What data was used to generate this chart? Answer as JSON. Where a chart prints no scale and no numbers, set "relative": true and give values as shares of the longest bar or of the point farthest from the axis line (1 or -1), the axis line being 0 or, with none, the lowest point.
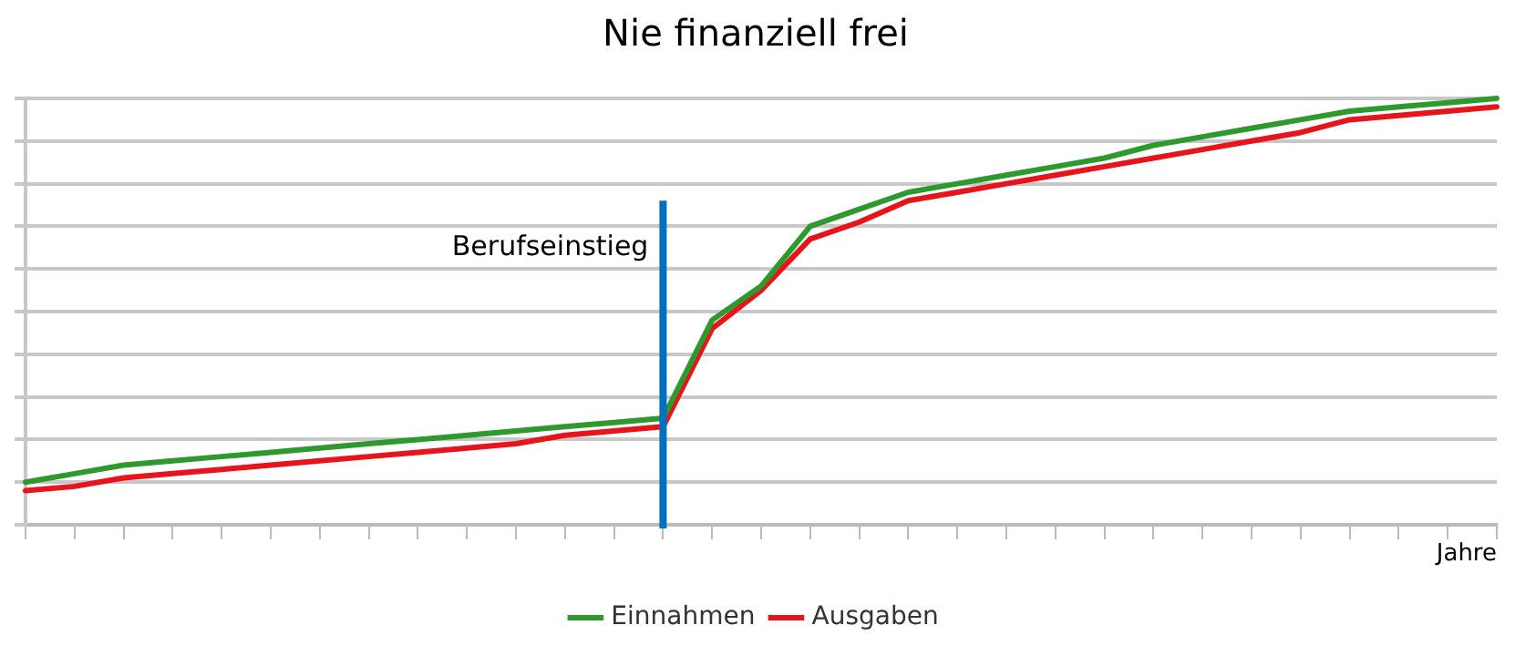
{
  "chart_data": {
    "type": "line",
    "title": "Nie finanziell frei",
    "xlabel": "Jahre",
    "relative": true,
    "grid": "y",
    "legend": "bottom",
    "marker": "none",
    "line_style": "solid",
    "categories": [
      null,
      null,
      null,
      null,
      null,
      null,
      null,
      null,
      null,
      null,
      null,
      null,
      null,
      null,
      null,
      null,
      null,
      null,
      null,
      null,
      null,
      null,
      null,
      null,
      null,
      null,
      null,
      null,
      null,
      null,
      null
    ],
    "series": [
      {
        "name": "Einnahmen",
        "color": "#2e9a2e",
        "values": [
          0.1,
          0.12,
          0.14,
          0.15,
          0.16,
          0.17,
          0.18,
          0.19,
          0.2,
          0.21,
          0.22,
          0.23,
          0.24,
          0.25,
          0.48,
          0.56,
          0.7,
          0.74,
          0.78,
          0.8,
          0.82,
          0.84,
          0.86,
          0.89,
          0.91,
          0.93,
          0.95,
          0.97,
          0.98,
          0.99,
          1
        ]
      },
      {
        "name": "Ausgaben",
        "color": "#e8141c",
        "values": [
          0.08,
          0.09,
          0.11,
          0.12,
          0.13,
          0.14,
          0.15,
          0.16,
          0.17,
          0.18,
          0.19,
          0.21,
          0.22,
          0.23,
          0.46,
          0.55,
          0.67,
          0.71,
          0.76,
          0.78,
          0.8,
          0.82,
          0.84,
          0.86,
          0.88,
          0.9,
          0.92,
          0.95,
          0.96,
          0.97,
          0.98
        ]
      }
    ],
    "annotations": [
      "Berufseinstieg"
    ]
  }
}
